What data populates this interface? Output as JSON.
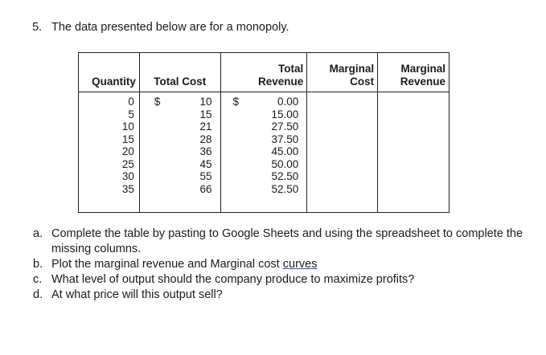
{
  "question": {
    "number": "5.",
    "text": "The data presented below are for a monopoly."
  },
  "table": {
    "headers": {
      "quantity": "Quantity",
      "total_cost": "Total Cost",
      "total_revenue_1": "Total",
      "total_revenue_2": "Revenue",
      "marginal_cost_1": "Marginal",
      "marginal_cost_2": "Cost",
      "marginal_revenue_1": "Marginal",
      "marginal_revenue_2": "Revenue"
    },
    "currency_symbol": "$",
    "quantity": [
      "0",
      "5",
      "10",
      "15",
      "20",
      "25",
      "30",
      "35"
    ],
    "total_cost": [
      "10",
      "15",
      "21",
      "28",
      "36",
      "45",
      "55",
      "66"
    ],
    "total_revenue": [
      "0.00",
      "15.00",
      "27.50",
      "37.50",
      "45.00",
      "50.00",
      "52.50",
      "52.50"
    ]
  },
  "parts": [
    {
      "letter": "a.",
      "text": "Complete the table by pasting to Google Sheets and using the spreadsheet to complete the missing columns."
    },
    {
      "letter": "b.",
      "text_before": "Plot the marginal revenue and Marginal cost ",
      "text_link": "curves"
    },
    {
      "letter": "c.",
      "text": "What level of output should the company produce to maximize profits?"
    },
    {
      "letter": "d.",
      "text": "At what price will this output sell?"
    }
  ]
}
